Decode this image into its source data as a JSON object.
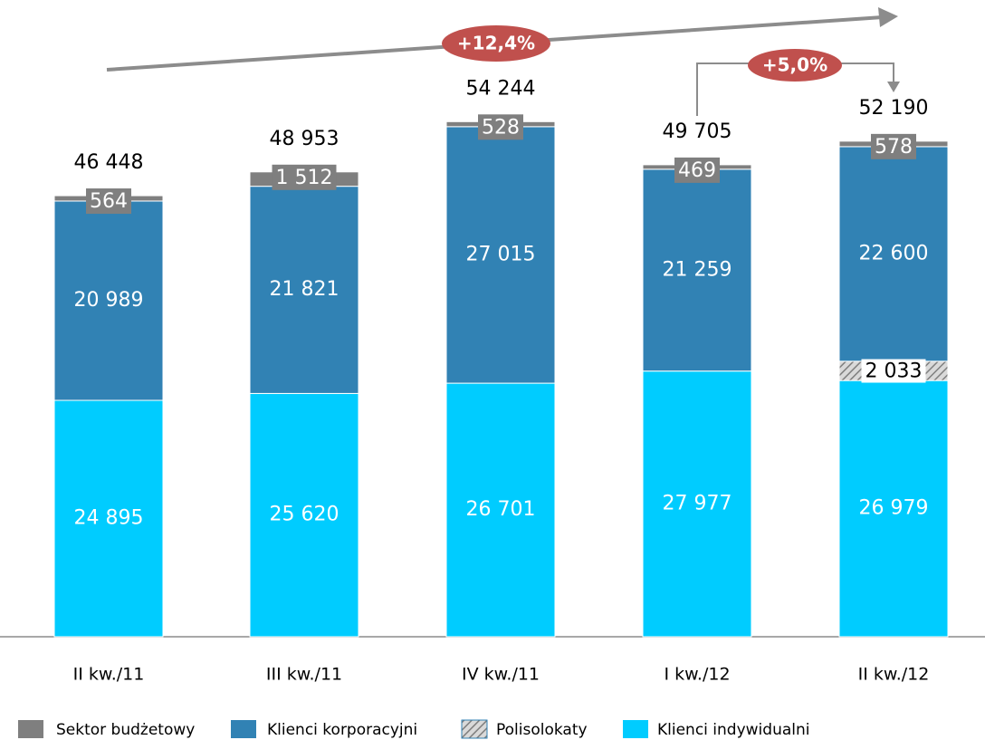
{
  "chart_data": {
    "type": "stacked_bar",
    "categories": [
      "II kw./11",
      "III kw./11",
      "IV kw./11",
      "I kw./12",
      "II kw./12"
    ],
    "series": [
      {
        "name": "Sektor budżetowy",
        "color": "#7f7f7f",
        "values": [
          564,
          1512,
          528,
          469,
          578
        ],
        "value_labels": [
          "564",
          "1 512",
          "528",
          "469",
          "578"
        ]
      },
      {
        "name": "Klienci korporacyjni",
        "color": "#3182b4",
        "values": [
          20989,
          21821,
          27015,
          21259,
          22600
        ],
        "value_labels": [
          "20 989",
          "21 821",
          "27 015",
          "21 259",
          "22 600"
        ]
      },
      {
        "name": "Polisolokaty",
        "color": "#9aa0a6",
        "hatch": true,
        "values": [
          null,
          null,
          null,
          null,
          2033
        ],
        "value_labels": [
          null,
          null,
          null,
          null,
          "2 033"
        ]
      },
      {
        "name": "Klienci indywidualni",
        "color": "#00ccff",
        "values": [
          24895,
          25620,
          26701,
          27977,
          26979
        ],
        "value_labels": [
          "24 895",
          "25 620",
          "26 701",
          "27 977",
          "26 979"
        ]
      }
    ],
    "totals": [
      46448,
      48953,
      54244,
      49705,
      52190
    ],
    "total_labels": [
      "46 448",
      "48 953",
      "54 244",
      "49 705",
      "52 190"
    ],
    "annotations": [
      "+12,4%",
      "+5,0%"
    ],
    "ylim": [
      0,
      62000
    ]
  }
}
